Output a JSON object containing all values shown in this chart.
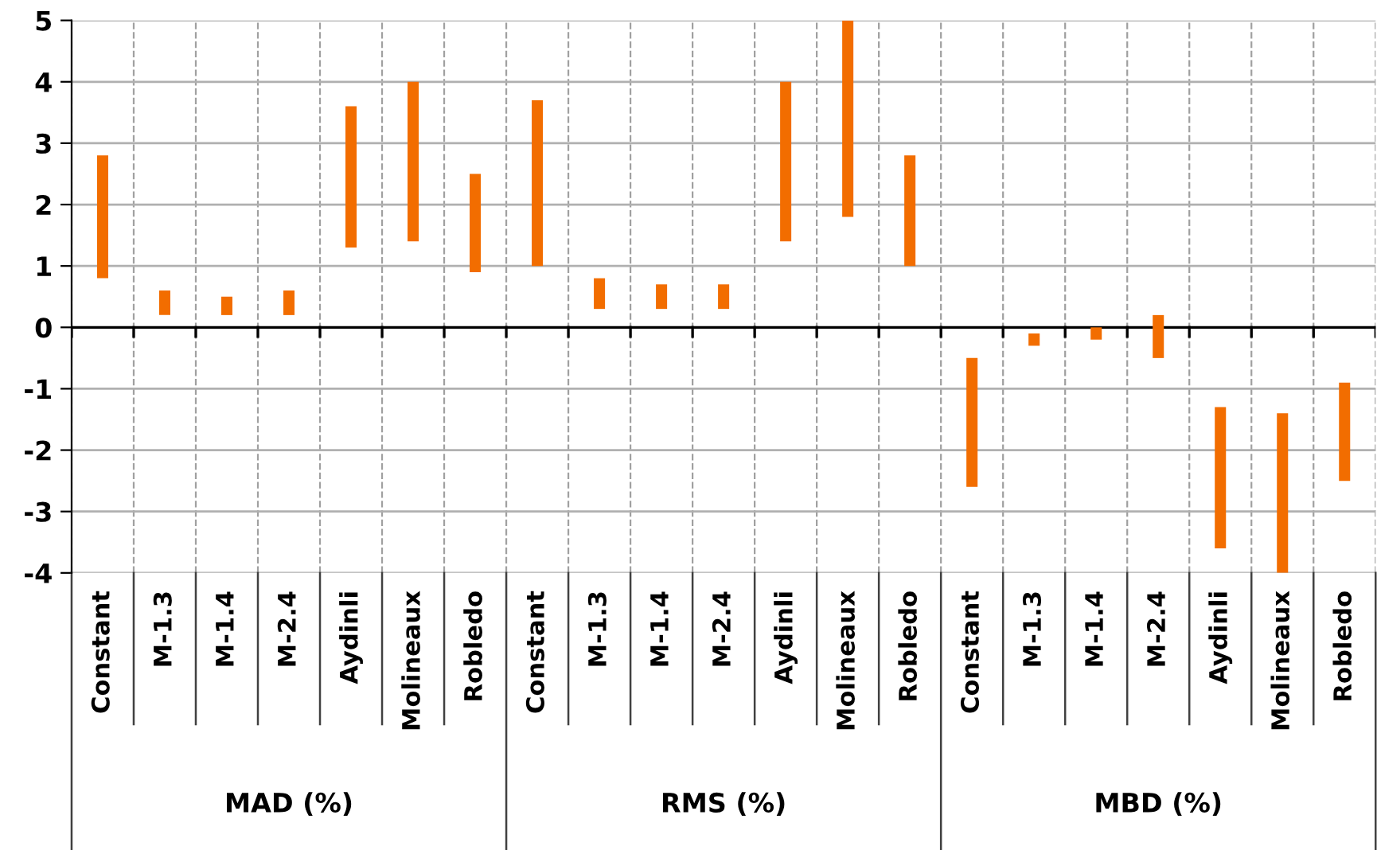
{
  "chart_data": {
    "type": "bar",
    "categories": [
      "Constant",
      "M-1.3",
      "M-1.4",
      "M-2.4",
      "Aydinli",
      "Molineaux",
      "Robledo",
      "Constant",
      "M-1.3",
      "M-1.4",
      "M-2.4",
      "Aydinli",
      "Molineaux",
      "Robledo",
      "Constant",
      "M-1.3",
      "M-1.4",
      "M-2.4",
      "Aydinli",
      "Molineaux",
      "Robledo"
    ],
    "base": [
      0.8,
      0.2,
      0.2,
      0.2,
      1.3,
      1.4,
      0.9,
      1.0,
      0.3,
      0.3,
      0.3,
      1.4,
      1.8,
      1.0,
      -2.6,
      -0.3,
      -0.2,
      -0.5,
      -3.6,
      -4.0,
      -2.5
    ],
    "values": [
      2.0,
      0.4,
      0.3,
      0.4,
      2.3,
      2.6,
      1.6,
      2.7,
      0.5,
      0.4,
      0.4,
      2.6,
      3.2,
      1.8,
      2.1,
      0.2,
      0.2,
      0.7,
      2.3,
      2.6,
      1.6
    ],
    "color": "#f26d00",
    "ylim": [
      -4,
      5
    ],
    "yticks": [
      -4,
      -3,
      -2,
      -1,
      0,
      1,
      2,
      3,
      4,
      5
    ],
    "grid": true,
    "annotations": [
      "MAD (%)",
      "RMS (%)",
      "MBD (%)"
    ]
  }
}
